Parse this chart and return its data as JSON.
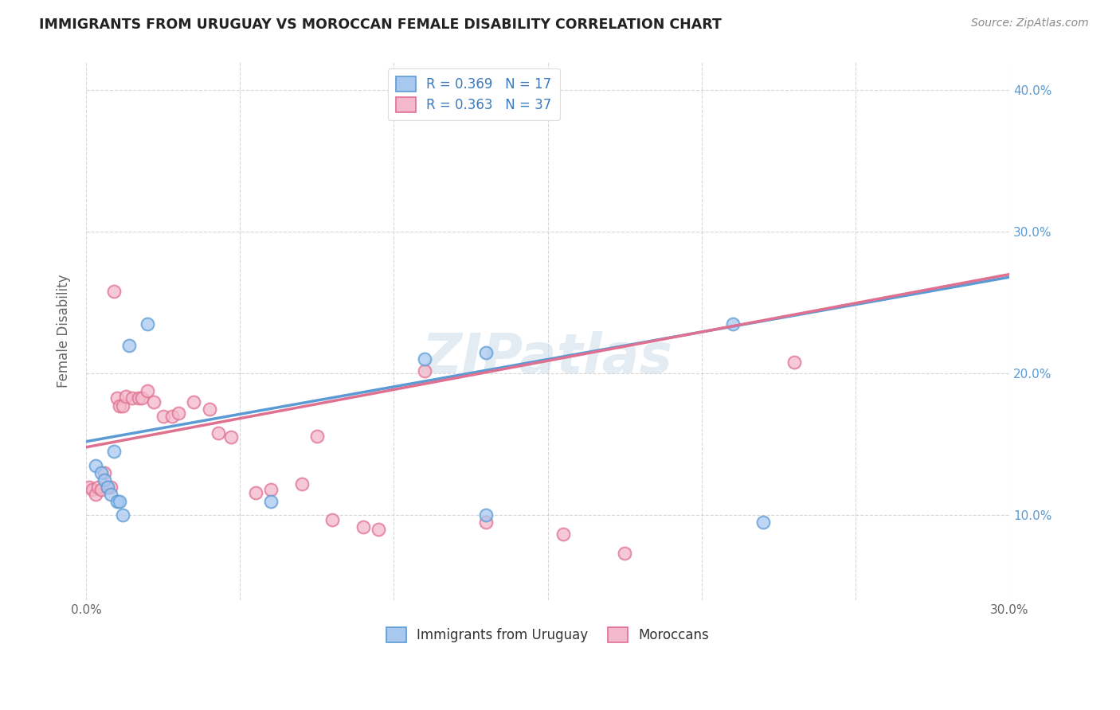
{
  "title": "IMMIGRANTS FROM URUGUAY VS MOROCCAN FEMALE DISABILITY CORRELATION CHART",
  "source": "Source: ZipAtlas.com",
  "ylabel": "Female Disability",
  "xlim": [
    0.0,
    0.3
  ],
  "ylim": [
    0.04,
    0.42
  ],
  "legend1_label": "R = 0.369   N = 17",
  "legend2_label": "R = 0.363   N = 37",
  "legend1_color": "#a8c8f0",
  "legend2_color": "#f4b8cc",
  "trendline1_color": "#5b9bd5",
  "trendline2_color": "#e07090",
  "watermark": "ZIPatlas",
  "background_color": "#ffffff",
  "grid_color": "#cccccc",
  "uruguay_x": [
    0.003,
    0.005,
    0.006,
    0.007,
    0.008,
    0.009,
    0.01,
    0.011,
    0.012,
    0.014,
    0.02,
    0.06,
    0.11,
    0.13,
    0.21,
    0.13,
    0.22
  ],
  "uruguay_y": [
    0.135,
    0.13,
    0.125,
    0.12,
    0.115,
    0.145,
    0.11,
    0.11,
    0.1,
    0.22,
    0.235,
    0.11,
    0.21,
    0.215,
    0.235,
    0.1,
    0.095
  ],
  "morocco_x": [
    0.001,
    0.002,
    0.003,
    0.004,
    0.005,
    0.006,
    0.007,
    0.008,
    0.009,
    0.01,
    0.011,
    0.012,
    0.013,
    0.015,
    0.017,
    0.018,
    0.02,
    0.022,
    0.025,
    0.028,
    0.03,
    0.035,
    0.04,
    0.043,
    0.047,
    0.055,
    0.06,
    0.07,
    0.075,
    0.08,
    0.09,
    0.095,
    0.11,
    0.13,
    0.155,
    0.175,
    0.23
  ],
  "morocco_y": [
    0.12,
    0.118,
    0.115,
    0.12,
    0.118,
    0.13,
    0.12,
    0.12,
    0.258,
    0.183,
    0.177,
    0.177,
    0.184,
    0.183,
    0.183,
    0.183,
    0.188,
    0.18,
    0.17,
    0.17,
    0.172,
    0.18,
    0.175,
    0.158,
    0.155,
    0.116,
    0.118,
    0.122,
    0.156,
    0.097,
    0.092,
    0.09,
    0.202,
    0.095,
    0.087,
    0.073,
    0.208
  ],
  "trendline_blue_x0": 0.0,
  "trendline_blue_y0": 0.152,
  "trendline_blue_x1": 0.3,
  "trendline_blue_y1": 0.268,
  "trendline_pink_x0": 0.0,
  "trendline_pink_y0": 0.148,
  "trendline_pink_x1": 0.3,
  "trendline_pink_y1": 0.27
}
